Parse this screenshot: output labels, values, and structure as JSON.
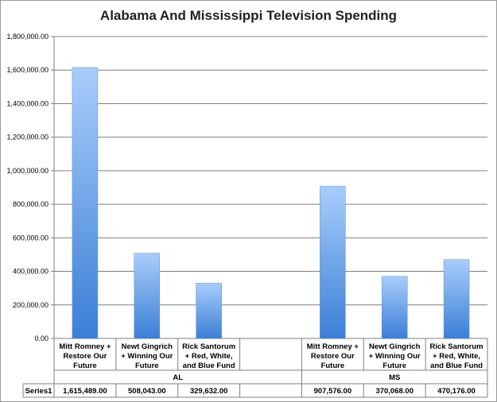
{
  "chart_data": {
    "type": "bar",
    "title": "Alabama And Mississippi Television Spending",
    "xlabel": "",
    "ylabel": "",
    "ylim": [
      0,
      1800000
    ],
    "yticks": [
      "0.00",
      "200,000.00",
      "400,000.00",
      "600,000.00",
      "800,000.00",
      "1,000,000.00",
      "1,200,000.00",
      "1,400,000.00",
      "1,600,000.00",
      "1,800,000.00"
    ],
    "grid": true,
    "groups": [
      {
        "label": "AL",
        "categories": [
          [
            "Mitt Romney +",
            "Restore Our",
            "Future"
          ],
          [
            "Newt Gingrich",
            "+ Winning Our",
            "Future"
          ],
          [
            "Rick Santorum",
            "+ Red, White,",
            "and Blue Fund"
          ],
          []
        ]
      },
      {
        "label": "MS",
        "categories": [
          [
            "Mitt Romney +",
            "Restore Our",
            "Future"
          ],
          [
            "Newt Gingrich",
            "+ Winning Our",
            "Future"
          ],
          [
            "Rick Santorum",
            "+ Red, White,",
            "and Blue Fund"
          ]
        ]
      }
    ],
    "series": [
      {
        "name": "Series1",
        "values": [
          1615489,
          508043,
          329632,
          null,
          907576,
          370068,
          470176
        ],
        "labels": [
          "1,615,489.00",
          "508,043.00",
          "329,632.00",
          "",
          "907,576.00",
          "370,068.00",
          "470,176.00"
        ]
      }
    ],
    "colors": {
      "bar_top": "#a9cdfb",
      "bar_bottom": "#3b7fd6",
      "grid": "#7f7f7f"
    }
  }
}
